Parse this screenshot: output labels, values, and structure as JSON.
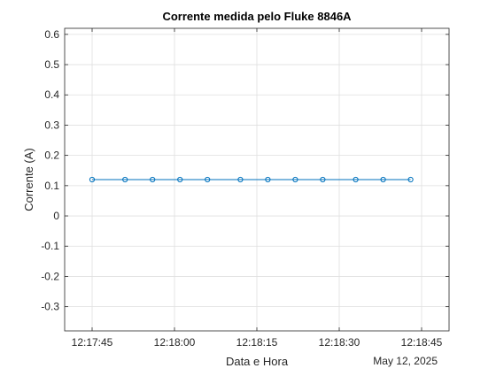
{
  "chart_data": {
    "type": "line",
    "title": "Corrente medida pelo Fluke 8846A",
    "xlabel": "Data e Hora",
    "ylabel": "Corrente (A)",
    "date_label": "May 12, 2025",
    "x_is_time": true,
    "xlim": [
      "12:17:40",
      "12:18:50"
    ],
    "ylim": [
      -0.38,
      0.62
    ],
    "grid": true,
    "x_ticks": [
      "12:17:45",
      "12:18:00",
      "12:18:15",
      "12:18:30",
      "12:18:45"
    ],
    "y_ticks": [
      0.6,
      0.5,
      0.4,
      0.3,
      0.2,
      0.1,
      0,
      -0.1,
      -0.2,
      -0.3
    ],
    "y_tick_labels": [
      "0.6",
      "0.5",
      "0.4",
      "0.3",
      "0.2",
      "0.1",
      "0",
      "-0.1",
      "-0.2",
      "-0.3"
    ],
    "series": [
      {
        "x": [
          "12:17:45",
          "12:17:51",
          "12:17:56",
          "12:18:01",
          "12:18:06",
          "12:18:12",
          "12:18:17",
          "12:18:22",
          "12:18:27",
          "12:18:33",
          "12:18:38",
          "12:18:43"
        ],
        "y": [
          0.12,
          0.12,
          0.12,
          0.12,
          0.12,
          0.12,
          0.12,
          0.12,
          0.12,
          0.12,
          0.12,
          0.12
        ],
        "color": "#0072BD",
        "marker": "circle"
      }
    ]
  }
}
